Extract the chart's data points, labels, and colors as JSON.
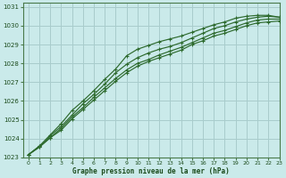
{
  "xlabel": "Graphe pression niveau de la mer (hPa)",
  "background_color": "#caeaea",
  "grid_color": "#a8cccc",
  "line_color": "#2d6a2d",
  "ylim": [
    1023,
    1031.2
  ],
  "xlim": [
    -0.5,
    23
  ],
  "yticks": [
    1023,
    1024,
    1025,
    1026,
    1027,
    1028,
    1029,
    1030,
    1031
  ],
  "xticks": [
    0,
    1,
    2,
    3,
    4,
    5,
    6,
    7,
    8,
    9,
    10,
    11,
    12,
    13,
    14,
    15,
    16,
    17,
    18,
    19,
    20,
    21,
    22,
    23
  ],
  "series": [
    [
      1023.15,
      1023.55,
      1024.05,
      1024.45,
      1025.05,
      1025.55,
      1026.05,
      1026.55,
      1027.05,
      1027.5,
      1027.85,
      1028.1,
      1028.3,
      1028.5,
      1028.7,
      1029.0,
      1029.2,
      1029.45,
      1029.6,
      1029.8,
      1030.0,
      1030.15,
      1030.2,
      1030.25
    ],
    [
      1023.15,
      1023.55,
      1024.05,
      1024.55,
      1025.15,
      1025.65,
      1026.2,
      1026.7,
      1027.2,
      1027.65,
      1028.0,
      1028.2,
      1028.45,
      1028.65,
      1028.85,
      1029.1,
      1029.35,
      1029.6,
      1029.75,
      1029.95,
      1030.15,
      1030.3,
      1030.35,
      1030.35
    ],
    [
      1023.15,
      1023.6,
      1024.15,
      1024.65,
      1025.25,
      1025.85,
      1026.35,
      1026.9,
      1027.5,
      1027.95,
      1028.3,
      1028.55,
      1028.75,
      1028.9,
      1029.1,
      1029.35,
      1029.6,
      1029.85,
      1030.0,
      1030.2,
      1030.35,
      1030.45,
      1030.5,
      1030.45
    ],
    [
      1023.15,
      1023.6,
      1024.2,
      1024.8,
      1025.5,
      1026.0,
      1026.55,
      1027.15,
      1027.7,
      1028.4,
      1028.75,
      1028.95,
      1029.15,
      1029.3,
      1029.45,
      1029.65,
      1029.85,
      1030.05,
      1030.2,
      1030.4,
      1030.5,
      1030.55,
      1030.55,
      1030.45
    ]
  ]
}
